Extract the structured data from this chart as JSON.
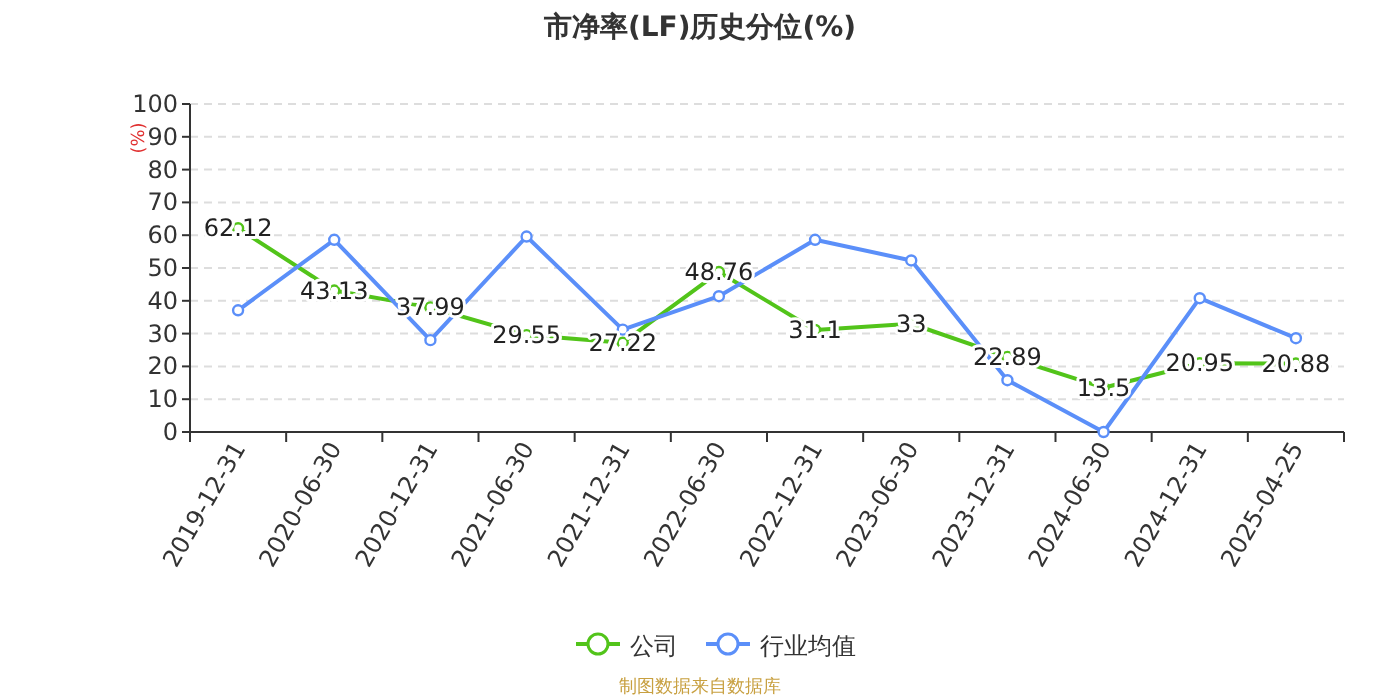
{
  "chart_data": {
    "type": "line",
    "title": "市净率(LF)历史分位(%)",
    "ylabel": "(%)",
    "categories": [
      "2019-12-31",
      "2020-06-30",
      "2020-12-31",
      "2021-06-30",
      "2021-12-31",
      "2022-06-30",
      "2022-12-31",
      "2023-06-30",
      "2023-12-31",
      "2024-06-30",
      "2024-12-31",
      "2025-04-25"
    ],
    "series": [
      {
        "name": "公司",
        "color": "#52c41a",
        "values": [
          62.12,
          43.13,
          37.99,
          29.55,
          27.22,
          48.76,
          31.1,
          33,
          22.89,
          13.5,
          20.95,
          20.88
        ],
        "data_labels": true
      },
      {
        "name": "行业均值",
        "color": "#5b8ff9",
        "values": [
          37.1,
          58.6,
          28.0,
          59.6,
          31.2,
          41.4,
          58.6,
          52.3,
          15.8,
          0,
          40.8,
          28.6
        ]
      }
    ],
    "ylim": [
      0,
      100
    ],
    "yticks": [
      0,
      10,
      20,
      30,
      40,
      50,
      60,
      70,
      80,
      90,
      100
    ],
    "grid": "y",
    "legend": "bottom",
    "marker": "circle",
    "annotations": [
      "制图数据来自数据库"
    ]
  }
}
